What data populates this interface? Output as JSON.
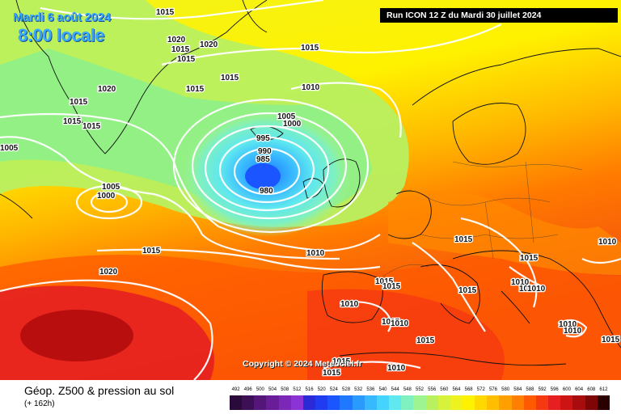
{
  "header": {
    "date": "Mardi 6 août 2024",
    "time": "8:00 locale",
    "run": "Run ICON 12 Z du Mardi 30 juillet 2024"
  },
  "copyright": "Copyright © 2024 Meteociel.fr",
  "footer": {
    "product": "Géop. Z500 & pression au sol",
    "lead": "(+ 162h)"
  },
  "scale": {
    "labels": [
      "492",
      "496",
      "500",
      "504",
      "508",
      "512",
      "516",
      "520",
      "524",
      "528",
      "532",
      "536",
      "540",
      "544",
      "548",
      "552",
      "556",
      "560",
      "564",
      "568",
      "572",
      "576",
      "580",
      "584",
      "588",
      "592",
      "596",
      "600",
      "604",
      "608",
      "612"
    ],
    "colors": [
      "#2a0a3a",
      "#3d0f55",
      "#55167a",
      "#6a1d99",
      "#7d27b8",
      "#8c33d6",
      "#2a2ad6",
      "#1f3cf0",
      "#1a55ff",
      "#1f78ff",
      "#2a9aff",
      "#38b8ff",
      "#45d4ff",
      "#5fe8ee",
      "#7ff0c0",
      "#9ef490",
      "#b8f060",
      "#d6f23a",
      "#eef21e",
      "#fff200",
      "#ffd800",
      "#ffbe00",
      "#ffa000",
      "#ff7f00",
      "#ff5a00",
      "#f53a12",
      "#e62020",
      "#cc1414",
      "#a80c0c",
      "#7e0606",
      "#2a0000"
    ]
  },
  "isobars": [
    {
      "text": "1015"
    },
    {
      "text": "1020"
    },
    {
      "text": "1015"
    },
    {
      "text": "1015"
    },
    {
      "text": "1020"
    },
    {
      "text": "1015"
    },
    {
      "text": "1015"
    },
    {
      "text": "1015"
    },
    {
      "text": "1020"
    },
    {
      "text": "1015"
    },
    {
      "text": "1015"
    },
    {
      "text": "1015"
    },
    {
      "text": "1010"
    },
    {
      "text": "1005"
    },
    {
      "text": "1000"
    },
    {
      "text": "995"
    },
    {
      "text": "990"
    },
    {
      "text": "985"
    },
    {
      "text": "980"
    },
    {
      "text": "1005"
    },
    {
      "text": "1005"
    },
    {
      "text": "1000"
    },
    {
      "text": "1015"
    },
    {
      "text": "1010"
    },
    {
      "text": "1020"
    },
    {
      "text": "1015"
    },
    {
      "text": "1015"
    },
    {
      "text": "1015"
    },
    {
      "text": "1010"
    },
    {
      "text": "1015"
    },
    {
      "text": "1015"
    },
    {
      "text": "1010"
    },
    {
      "text": "1010"
    },
    {
      "text": "1010"
    },
    {
      "text": "1015"
    },
    {
      "text": "1010"
    },
    {
      "text": "1015"
    },
    {
      "text": "1015"
    },
    {
      "text": "1010"
    },
    {
      "text": "1015"
    },
    {
      "text": "1010"
    },
    {
      "text": "1015"
    },
    {
      "text": "1010"
    },
    {
      "text": "1010"
    }
  ]
}
